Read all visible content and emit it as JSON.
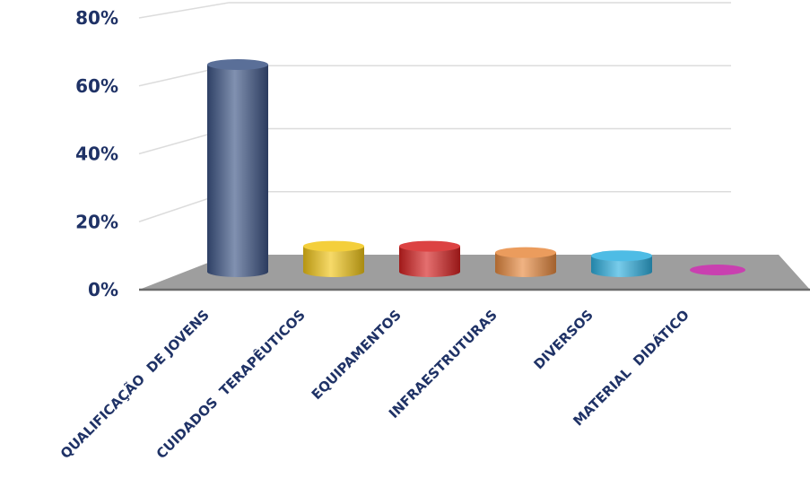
{
  "chart_data": {
    "type": "bar",
    "categories": [
      "QUALIFICAÇÃO  DE JOVENS",
      "CUIDADOS  TERAPÊUTICOS",
      "EQUIPAMENTOS",
      "INFRAESTRUTURAS",
      "DIVERSOS",
      "MATERIAL  DIDÁTICO"
    ],
    "values": [
      65,
      8,
      8,
      6,
      5,
      0
    ],
    "colors": [
      "#3d5586",
      "#f2c618",
      "#d62121",
      "#e88a40",
      "#2fb0e0",
      "#c940b0"
    ],
    "y_ticks": [
      "0%",
      "20%",
      "40%",
      "60%",
      "80%"
    ],
    "ylim": [
      0,
      80
    ],
    "grid": true,
    "floor_color": "#9e9e9e",
    "title": "",
    "xlabel": "",
    "ylabel": ""
  }
}
